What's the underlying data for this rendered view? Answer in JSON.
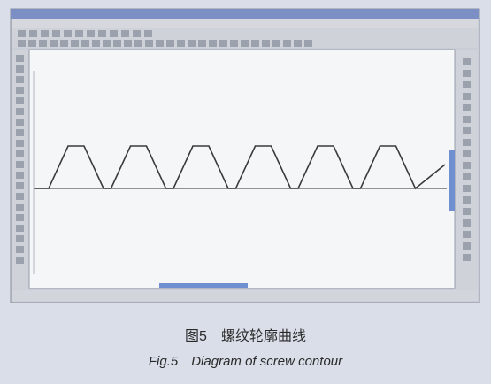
{
  "caption": {
    "chinese": "图5　螺纹轮廓曲线",
    "english": "Fig.5　Diagram of screw contour"
  }
}
